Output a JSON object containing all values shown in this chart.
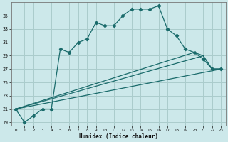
{
  "xlabel": "Humidex (Indice chaleur)",
  "bg_color": "#cce8ea",
  "grid_color": "#aacccc",
  "line_color": "#1a6b6b",
  "xlim": [
    -0.5,
    23.5
  ],
  "ylim": [
    18.5,
    37
  ],
  "yticks": [
    19,
    21,
    23,
    25,
    27,
    29,
    31,
    33,
    35
  ],
  "xticks": [
    0,
    1,
    2,
    3,
    4,
    5,
    6,
    7,
    8,
    9,
    10,
    11,
    12,
    13,
    14,
    15,
    16,
    17,
    18,
    19,
    20,
    21,
    22,
    23
  ],
  "curve1_x": [
    0,
    1,
    2,
    3,
    4,
    5,
    6,
    7,
    8,
    9,
    10,
    11,
    12,
    13,
    14,
    15,
    16,
    17,
    18,
    19,
    20,
    21,
    22,
    23
  ],
  "curve1_y": [
    21,
    19,
    20,
    21,
    21,
    30,
    29.5,
    31,
    31.5,
    34,
    33.5,
    33.5,
    35,
    36,
    36,
    36,
    36.5,
    33,
    32,
    30,
    29.5,
    28.5,
    27,
    27
  ],
  "curve2_x": [
    0,
    23
  ],
  "curve2_y": [
    21,
    27
  ],
  "curve3_x": [
    0,
    21,
    22,
    23
  ],
  "curve3_y": [
    21,
    29,
    27,
    27
  ],
  "curve4_x": [
    0,
    20,
    21,
    22,
    23
  ],
  "curve4_y": [
    21,
    29.5,
    29,
    27,
    27
  ]
}
